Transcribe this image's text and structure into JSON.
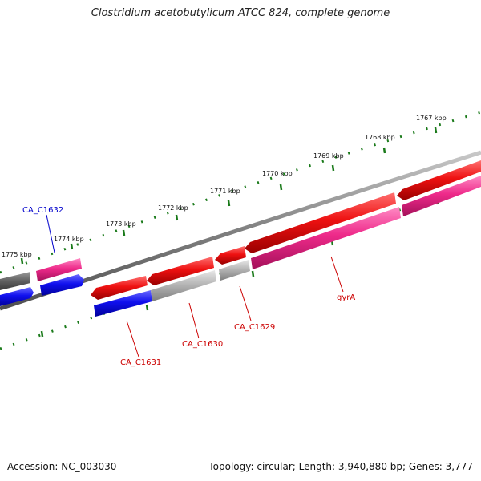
{
  "title": "Clostridium acetobutylicum ATCC 824, complete genome",
  "footer": {
    "accession": "Accession: NC_003030",
    "summary": "Topology: circular; Length: 3,940,880 bp; Genes: 3,777"
  },
  "ticks": [
    "1767 kbp",
    "1768 kbp",
    "1769 kbp",
    "1770 kbp",
    "1771 kbp",
    "1772 kbp",
    "1773 kbp",
    "1774 kbp",
    "1775 kbp"
  ],
  "gene_labels": {
    "ca_c1632": "CA_C1632",
    "ca_c1631": "CA_C1631",
    "ca_c1630": "CA_C1630",
    "ca_c1629": "CA_C1629",
    "gyra": "gyrA"
  },
  "colors": {
    "backbone": "#808080",
    "cds_forward": "#ee1111",
    "cds_reverse": "#1010ee",
    "gene_pink": "#ee2a8a",
    "gene_gray": "#a9a9a9",
    "tick": "#1a7a1a",
    "label_red": "#cc0000",
    "label_blue": "#0000cc"
  }
}
